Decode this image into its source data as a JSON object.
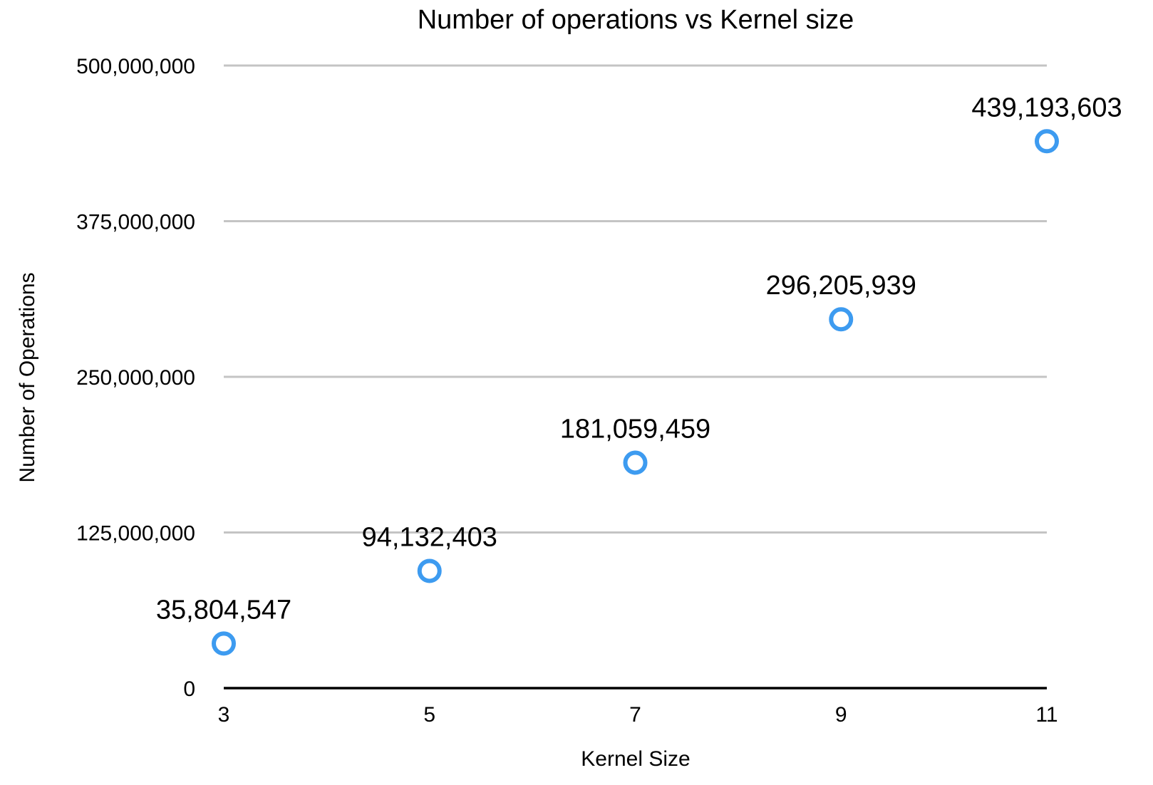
{
  "chart_data": {
    "type": "scatter",
    "title": "Number of operations vs Kernel size",
    "xlabel": "Kernel Size",
    "ylabel": "Number of Operations",
    "x": [
      3,
      5,
      7,
      9,
      11
    ],
    "y": [
      35804547,
      94132403,
      181059459,
      296205939,
      439193603
    ],
    "data_labels": [
      "35,804,547",
      "94,132,403",
      "181,059,459",
      "296,205,939",
      "439,193,603"
    ],
    "xticks": [
      3,
      5,
      7,
      9,
      11
    ],
    "xtick_labels": [
      "3",
      "5",
      "7",
      "9",
      "11"
    ],
    "yticks": [
      0,
      125000000,
      250000000,
      375000000,
      500000000
    ],
    "ytick_labels": [
      "0",
      "125,000,000",
      "250,000,000",
      "375,000,000",
      "500,000,000"
    ],
    "xlim": [
      3,
      11
    ],
    "ylim": [
      0,
      500000000
    ],
    "grid": true,
    "legend": "none",
    "marker": "hollow-circle",
    "colors": {
      "marker": "#3d9bf0",
      "grid": "#c4c4c4",
      "axis": "#000000"
    }
  }
}
